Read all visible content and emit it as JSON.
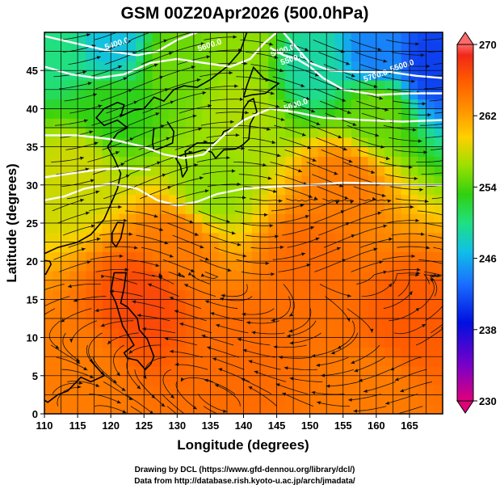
{
  "chart_data": {
    "type": "heatmap",
    "title": "GSM 00Z20Apr2026 (500.0hPa)",
    "xlabel": "Longitude (degrees)",
    "ylabel": "Latitude (degrees)",
    "xlim": [
      110,
      170
    ],
    "ylim": [
      0,
      50
    ],
    "xticks": [
      "110",
      "115",
      "120",
      "125",
      "130",
      "135",
      "140",
      "145",
      "150",
      "155",
      "160",
      "165"
    ],
    "yticks": [
      "0",
      "5",
      "10",
      "15",
      "20",
      "25",
      "30",
      "35",
      "40",
      "45"
    ],
    "colorbar": {
      "min": 230,
      "max": 270,
      "labels": [
        "270",
        "262",
        "254",
        "246",
        "238",
        "230"
      ],
      "colors": [
        "#e0007a",
        "#6a00c0",
        "#0010e0",
        "#1a70ff",
        "#10c0e8",
        "#20e080",
        "#30d010",
        "#9be000",
        "#ffd000",
        "#ff9000",
        "#ff5a00",
        "#f02818",
        "#ff6a6a"
      ]
    },
    "contours": [
      {
        "label": "5400.0"
      },
      {
        "label": "5400.0"
      },
      {
        "label": "5500.0"
      },
      {
        "label": "5500.0"
      },
      {
        "label": "5600.0"
      },
      {
        "label": "5600.0"
      },
      {
        "label": "5700.0"
      }
    ],
    "field_description_points": [
      {
        "lon": 112,
        "lat": 48,
        "value": 250
      },
      {
        "lon": 120,
        "lat": 49,
        "value": 247
      },
      {
        "lon": 130,
        "lat": 46,
        "value": 255
      },
      {
        "lon": 140,
        "lat": 48,
        "value": 256
      },
      {
        "lon": 150,
        "lat": 46,
        "value": 249
      },
      {
        "lon": 160,
        "lat": 47,
        "value": 244
      },
      {
        "lon": 168,
        "lat": 46,
        "value": 241
      },
      {
        "lon": 120,
        "lat": 40,
        "value": 253
      },
      {
        "lon": 140,
        "lat": 40,
        "value": 257
      },
      {
        "lon": 160,
        "lat": 40,
        "value": 255
      },
      {
        "lon": 115,
        "lat": 32,
        "value": 258
      },
      {
        "lon": 135,
        "lat": 30,
        "value": 256
      },
      {
        "lon": 155,
        "lat": 30,
        "value": 264
      },
      {
        "lon": 130,
        "lat": 22,
        "value": 264
      },
      {
        "lon": 150,
        "lat": 20,
        "value": 265
      },
      {
        "lon": 125,
        "lat": 15,
        "value": 267
      },
      {
        "lon": 165,
        "lat": 12,
        "value": 266
      },
      {
        "lon": 140,
        "lat": 8,
        "value": 265
      },
      {
        "lon": 115,
        "lat": 5,
        "value": 264
      },
      {
        "lon": 160,
        "lat": 3,
        "value": 264
      }
    ]
  },
  "credits": {
    "line1": "Drawing by DCL (https://www.gfd-dennou.org/library/dcl/)",
    "line2": "Data from http://database.rish.kyoto-u.ac.jp/arch/jmadata/"
  }
}
